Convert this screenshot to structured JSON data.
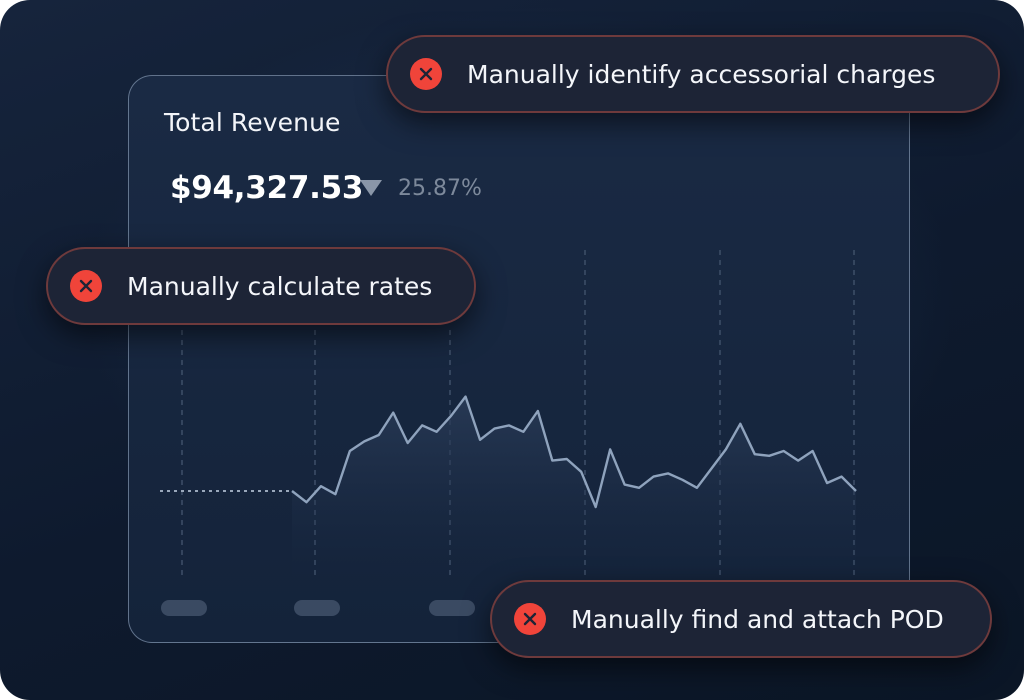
{
  "card": {
    "title": "Total Revenue",
    "amount": "$94,327.53",
    "trend_icon": "triangle-down-icon",
    "change_percent": "25.87%"
  },
  "chart_data": {
    "type": "line",
    "series": [
      {
        "values": [
          0,
          -0.35,
          0.15,
          -0.1,
          1.25,
          1.55,
          1.75,
          2.45,
          1.5,
          2.05,
          1.85,
          2.35,
          2.95,
          1.6,
          1.95,
          2.05,
          1.85,
          2.5,
          0.95,
          1.0,
          0.6,
          -0.5,
          1.3,
          0.2,
          0.1,
          0.45,
          0.55,
          0.35,
          0.1,
          0.7,
          1.3,
          2.1,
          1.15,
          1.1,
          1.25,
          0.95,
          1.25,
          0.25,
          0.45,
          0.0
        ]
      }
    ],
    "baseline_label": "",
    "grid": "vertical-dashed"
  },
  "toasts": [
    {
      "icon": "close-circle-icon",
      "label": "Manually identify accessorial charges"
    },
    {
      "icon": "close-circle-icon",
      "label": "Manually calculate rates"
    },
    {
      "icon": "close-circle-icon",
      "label": "Manually find and attach POD"
    }
  ],
  "colors": {
    "background": "#0e1a2e",
    "line": "#8fa3bd",
    "error": "#f0443a"
  }
}
